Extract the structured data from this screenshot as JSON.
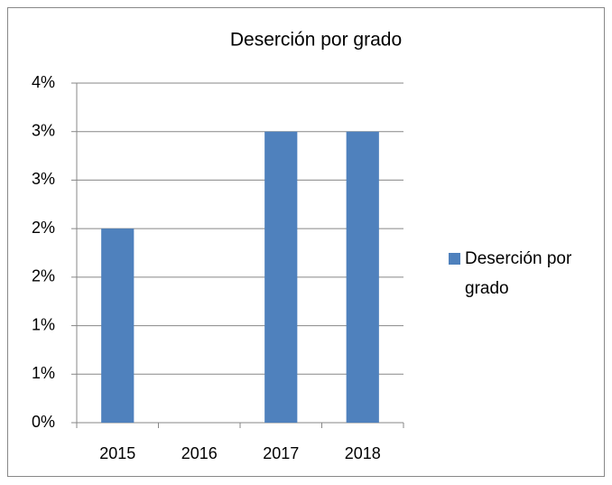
{
  "chart_data": {
    "type": "bar",
    "title": "Deserción por grado",
    "categories": [
      "2015",
      "2016",
      "2017",
      "2018"
    ],
    "series": [
      {
        "name": "Deserción por grado",
        "color": "#4f81bd",
        "values": [
          2,
          0,
          3,
          3
        ]
      }
    ],
    "ylim": [
      0,
      3.5
    ],
    "yticks": [
      {
        "value": 0,
        "label": "0%"
      },
      {
        "value": 0.5,
        "label": "1%"
      },
      {
        "value": 1,
        "label": "1%"
      },
      {
        "value": 1.5,
        "label": "2%"
      },
      {
        "value": 2,
        "label": "2%"
      },
      {
        "value": 2.5,
        "label": "3%"
      },
      {
        "value": 3,
        "label": "3%"
      },
      {
        "value": 3.5,
        "label": "4%"
      }
    ],
    "grid": true,
    "legend": "right"
  }
}
